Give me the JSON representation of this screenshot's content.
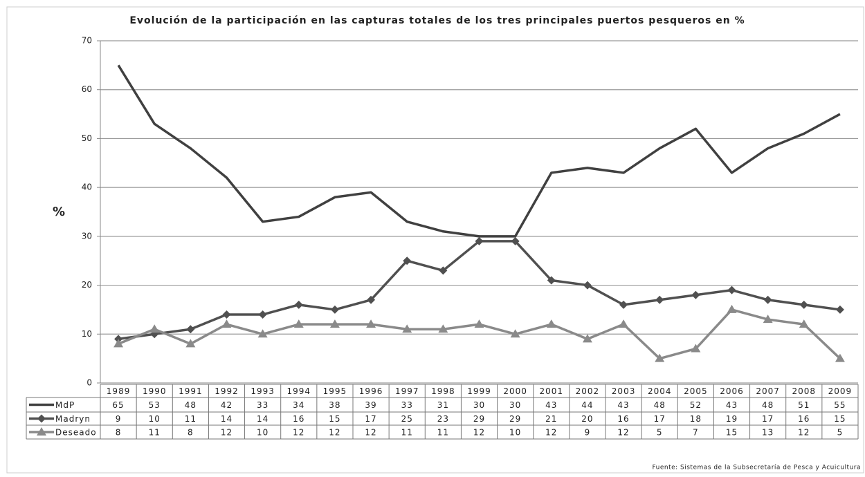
{
  "chart_data": {
    "type": "line",
    "title": "Evolución de la participación en las capturas totales de los tres principales puertos pesqueros en %",
    "y_label": "%",
    "source": "Fuente: Sistemas de la Subsecretaría de Pesca y Acuicultura",
    "categories": [
      "1989",
      "1990",
      "1991",
      "1992",
      "1993",
      "1994",
      "1995",
      "1996",
      "1997",
      "1998",
      "1999",
      "2000",
      "2001",
      "2002",
      "2003",
      "2004",
      "2005",
      "2006",
      "2007",
      "2008",
      "2009"
    ],
    "series": [
      {
        "name": "MdP",
        "color": "#404040",
        "marker": "none",
        "values": [
          65,
          53,
          48,
          42,
          33,
          34,
          38,
          39,
          33,
          31,
          30,
          30,
          43,
          44,
          43,
          48,
          52,
          43,
          48,
          51,
          55
        ]
      },
      {
        "name": "Madryn",
        "color": "#505050",
        "marker": "diamond",
        "values": [
          9,
          10,
          11,
          14,
          14,
          16,
          15,
          17,
          25,
          23,
          29,
          29,
          21,
          20,
          16,
          17,
          18,
          19,
          17,
          16,
          15
        ]
      },
      {
        "name": "Deseado",
        "color": "#8a8a8a",
        "marker": "triangle",
        "values": [
          8,
          11,
          8,
          12,
          10,
          12,
          12,
          12,
          11,
          11,
          12,
          10,
          12,
          9,
          12,
          5,
          7,
          15,
          13,
          12,
          5
        ]
      }
    ],
    "ylim": [
      0,
      70
    ],
    "yticks": [
      0,
      10,
      20,
      30,
      40,
      50,
      60,
      70
    ],
    "grid": true
  }
}
